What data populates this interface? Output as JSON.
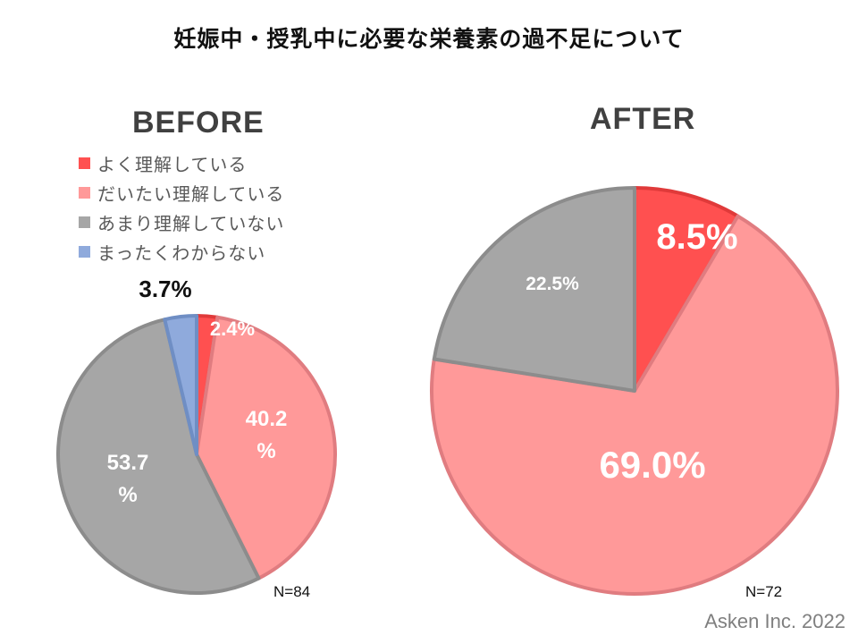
{
  "title": "妊娠中・授乳中に必要な栄養素の過不足について",
  "legend": [
    {
      "label": "よく理解している",
      "color": "#ff5050"
    },
    {
      "label": "だいたい理解している",
      "color": "#ff9999"
    },
    {
      "label": "あまり理解していない",
      "color": "#a6a6a6"
    },
    {
      "label": "まったくわからない",
      "color": "#8faadc"
    }
  ],
  "chart_data": [
    {
      "type": "pie",
      "subtitle": "BEFORE",
      "n_label": "N=84",
      "slices": [
        {
          "category": "よく理解している",
          "value": 2.4,
          "label": "2.4%"
        },
        {
          "category": "だいたい理解している",
          "value": 40.2,
          "label": "40.2%"
        },
        {
          "category": "あまり理解していない",
          "value": 53.7,
          "label": "53.7%"
        },
        {
          "category": "まったくわからない",
          "value": 3.7,
          "label": "3.7%"
        }
      ]
    },
    {
      "type": "pie",
      "subtitle": "AFTER",
      "n_label": "N=72",
      "slices": [
        {
          "category": "よく理解している",
          "value": 8.5,
          "label": "8.5%"
        },
        {
          "category": "だいたい理解している",
          "value": 69.0,
          "label": "69.0%"
        },
        {
          "category": "あまり理解していない",
          "value": 22.5,
          "label": "22.5%"
        }
      ]
    }
  ],
  "credit": "Asken Inc. 2022"
}
